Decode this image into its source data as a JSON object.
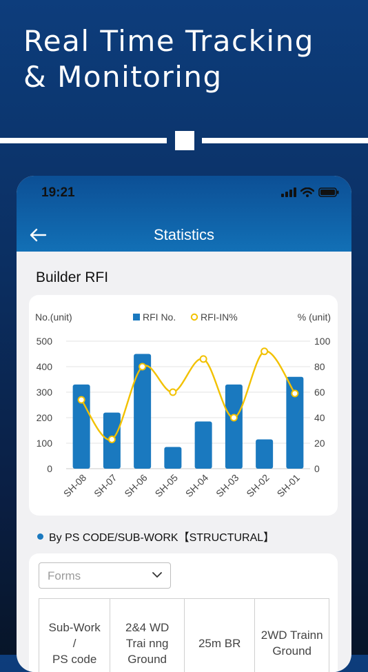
{
  "hero": {
    "line1": "Real Time Tracking",
    "line2": "& Monitoring"
  },
  "status_bar": {
    "time": "19:21",
    "icons": [
      "signal-icon",
      "wifi-icon",
      "battery-icon"
    ]
  },
  "nav": {
    "title": "Statistics",
    "back_icon": "arrow-left-icon"
  },
  "section": {
    "title": "Builder RFI"
  },
  "chart_data": {
    "type": "bar+line",
    "title": "",
    "y_left_label": "No.(unit)",
    "y_right_label": "% (unit)",
    "legend": [
      {
        "name": "RFI No.",
        "marker": "square",
        "color": "#1a79bf"
      },
      {
        "name": "RFI-IN%",
        "marker": "circle",
        "color": "#f2c100"
      }
    ],
    "categories": [
      "SH-08",
      "SH-07",
      "SH-06",
      "SH-05",
      "SH-04",
      "SH-03",
      "SH-02",
      "SH-01"
    ],
    "series": [
      {
        "name": "RFI No.",
        "type": "bar",
        "axis": "left",
        "values": [
          330,
          220,
          450,
          85,
          185,
          330,
          115,
          360
        ]
      },
      {
        "name": "RFI-IN%",
        "type": "line",
        "axis": "right",
        "values": [
          54,
          23,
          80,
          60,
          86,
          40,
          92,
          59
        ]
      }
    ],
    "y_left": {
      "min": 0,
      "max": 500,
      "ticks": [
        "0",
        "100",
        "200",
        "300",
        "400",
        "500"
      ]
    },
    "y_right": {
      "min": 0,
      "max": 100,
      "ticks": [
        "0",
        "20",
        "40",
        "60",
        "80",
        "100"
      ]
    },
    "grid": true,
    "legend_position": "top-center",
    "colors": {
      "bar": "#1a79bf",
      "line": "#f2c100"
    }
  },
  "filter": {
    "label": "By PS CODE/SUB-WORK【STRUCTURAL】"
  },
  "forms": {
    "selected": "Forms"
  },
  "table": {
    "headers": [
      "Sub-Work / PS code",
      "2&4 WD Trai nng Ground",
      "25m BR",
      "2WD Trainn Ground"
    ],
    "header_lines": [
      [
        "Sub-Work",
        "/",
        "PS code"
      ],
      [
        "2&4 WD",
        "Trai nng",
        "Ground"
      ],
      [
        "25m BR"
      ],
      [
        "2WD Trainn",
        "Ground"
      ]
    ]
  }
}
